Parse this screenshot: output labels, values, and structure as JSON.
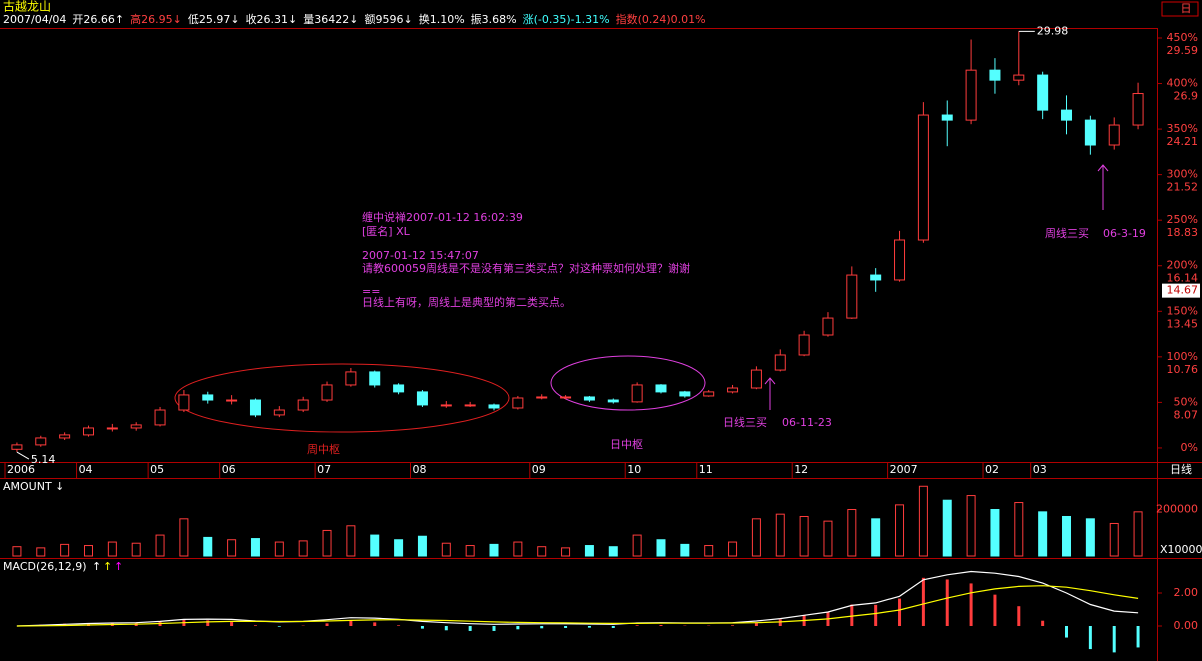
{
  "header": {
    "name": "古越龙山",
    "items": [
      "2007/04/04",
      "开26.66↑",
      "高26.95↓",
      "低25.97↓",
      "收26.31↓",
      "量36422↓",
      "额9596↓",
      "换1.10%",
      "振3.68%",
      "涨(-0.35)-1.31%",
      "指数(0.24)0.01%"
    ],
    "badge": "日"
  },
  "notes": {
    "comment": [
      "缠中说禅2007-01-12 16:02:39",
      "[匿名] XL",
      "2007-01-12 15:47:07",
      "请教600059周线是不是没有第三类买点？对这种票如何处理？谢谢",
      "==",
      "日线上有呀，周线上是典型的第二类买点。"
    ],
    "labels": [
      "周中枢",
      "日中枢",
      "日线三买",
      "06-11-23",
      "周线三买",
      "06-3-19"
    ]
  },
  "chart_data": [
    {
      "type": "candlestick",
      "categories": [
        "2006",
        null,
        null,
        "04",
        null,
        null,
        "05",
        null,
        null,
        "06",
        null,
        null,
        null,
        "07",
        null,
        null,
        null,
        "08",
        null,
        null,
        null,
        null,
        "09",
        null,
        null,
        null,
        "10",
        null,
        null,
        "11",
        null,
        null,
        null,
        "12",
        null,
        null,
        null,
        "2007",
        null,
        null,
        null,
        "02",
        null,
        "03",
        null,
        null,
        null,
        null
      ],
      "period": "日线",
      "open": [
        5.3,
        5.56,
        5.97,
        6.15,
        6.56,
        6.56,
        6.74,
        7.62,
        8.51,
        8.21,
        8.21,
        7.33,
        7.62,
        8.21,
        9.1,
        9.87,
        9.1,
        8.69,
        7.92,
        7.92,
        7.92,
        7.74,
        8.33,
        8.39,
        8.39,
        8.21,
        8.1,
        9.1,
        8.69,
        8.45,
        8.69,
        8.92,
        9.98,
        10.87,
        12.05,
        13.05,
        15.59,
        15.3,
        17.66,
        25.04,
        24.74,
        27.69,
        27.1,
        27.4,
        25.33,
        24.74,
        23.27,
        24.45
      ],
      "high": [
        5.7,
        6.1,
        6.3,
        6.7,
        6.8,
        6.9,
        7.8,
        8.8,
        8.7,
        8.5,
        8.3,
        7.85,
        8.4,
        9.3,
        10.1,
        9.95,
        9.2,
        8.8,
        8.15,
        8.1,
        8.0,
        8.45,
        8.55,
        8.5,
        8.45,
        8.3,
        9.25,
        9.15,
        8.75,
        8.8,
        9.1,
        10.2,
        11.2,
        12.3,
        13.4,
        16.1,
        16.0,
        18.2,
        25.8,
        25.9,
        29.5,
        28.4,
        29.98,
        27.6,
        26.2,
        25.0,
        24.9,
        26.95
      ],
      "low": [
        5.14,
        5.45,
        5.85,
        6.05,
        6.35,
        6.4,
        6.65,
        7.5,
        8.0,
        7.95,
        7.2,
        7.2,
        7.5,
        8.1,
        9.0,
        8.95,
        8.55,
        7.8,
        7.75,
        7.8,
        7.6,
        7.65,
        8.25,
        8.25,
        8.1,
        8.0,
        8.05,
        8.6,
        8.35,
        8.4,
        8.6,
        8.85,
        9.9,
        10.8,
        11.95,
        13.0,
        14.6,
        15.2,
        17.5,
        23.2,
        24.5,
        26.3,
        26.8,
        24.8,
        23.9,
        22.7,
        23.0,
        24.2
      ],
      "close": [
        5.56,
        5.97,
        6.15,
        6.56,
        6.56,
        6.74,
        7.62,
        8.51,
        8.21,
        8.21,
        7.33,
        7.62,
        8.21,
        9.1,
        9.87,
        9.1,
        8.69,
        7.92,
        7.92,
        7.92,
        7.74,
        8.33,
        8.39,
        8.39,
        8.21,
        8.1,
        9.1,
        8.69,
        8.45,
        8.69,
        8.92,
        9.98,
        10.87,
        12.05,
        13.05,
        15.59,
        15.3,
        17.66,
        25.04,
        24.74,
        27.69,
        27.1,
        27.4,
        25.33,
        24.74,
        23.27,
        24.45,
        26.31
      ],
      "up_color": "#ff3c3c",
      "down_color": "#54ffff",
      "ylim": [
        4.55,
        30.18
      ],
      "yticks": [
        {
          "value": 5.38,
          "label": "0%"
        },
        {
          "value": 8.07,
          "label": "50%"
        },
        {
          "value": 10.76,
          "label": "100%"
        },
        {
          "value": 13.45,
          "label": "150%"
        },
        {
          "value": 16.14,
          "label": "200%"
        },
        {
          "value": 18.83,
          "label": "250%"
        },
        {
          "value": 21.52,
          "label": "300%"
        },
        {
          "value": 24.21,
          "label": "350%"
        },
        {
          "value": 26.9,
          "label": "400%"
        },
        {
          "value": 29.59,
          "label": "450%"
        }
      ],
      "cursor_price": 14.67
    },
    {
      "type": "bar",
      "title": "AMOUNT ↓",
      "unit": "X10000",
      "values": [
        40000,
        35000,
        50000,
        45000,
        60000,
        55000,
        90000,
        160000,
        80000,
        70000,
        75000,
        60000,
        65000,
        110000,
        130000,
        90000,
        70000,
        85000,
        55000,
        45000,
        50000,
        60000,
        40000,
        35000,
        45000,
        40000,
        90000,
        70000,
        50000,
        45000,
        60000,
        160000,
        180000,
        170000,
        150000,
        200000,
        160000,
        220000,
        300000,
        240000,
        260000,
        200000,
        230000,
        190000,
        170000,
        160000,
        140000,
        190000
      ],
      "ylim": [
        0,
        327000
      ],
      "yticks": [
        200000
      ]
    },
    {
      "type": "macd",
      "title": "MACD(26,12,9)",
      "series": [
        {
          "name": "↑",
          "color": "#ffffff",
          "values": [
            0,
            0.05,
            0.1,
            0.15,
            0.18,
            0.2,
            0.28,
            0.4,
            0.42,
            0.4,
            0.3,
            0.25,
            0.28,
            0.38,
            0.5,
            0.48,
            0.4,
            0.28,
            0.2,
            0.14,
            0.1,
            0.12,
            0.13,
            0.13,
            0.12,
            0.1,
            0.18,
            0.2,
            0.18,
            0.18,
            0.2,
            0.3,
            0.45,
            0.65,
            0.85,
            1.25,
            1.4,
            1.8,
            2.8,
            3.1,
            3.3,
            3.2,
            3.0,
            2.6,
            2.0,
            1.3,
            0.9,
            0.8
          ]
        },
        {
          "name": "↑",
          "color": "#ffff00",
          "values": [
            0,
            0.01,
            0.03,
            0.06,
            0.09,
            0.11,
            0.15,
            0.2,
            0.25,
            0.28,
            0.28,
            0.27,
            0.27,
            0.3,
            0.34,
            0.37,
            0.38,
            0.36,
            0.33,
            0.29,
            0.25,
            0.22,
            0.2,
            0.19,
            0.17,
            0.16,
            0.16,
            0.17,
            0.17,
            0.17,
            0.18,
            0.2,
            0.25,
            0.33,
            0.43,
            0.6,
            0.76,
            0.97,
            1.34,
            1.69,
            2.01,
            2.25,
            2.4,
            2.44,
            2.35,
            2.14,
            1.89,
            1.67
          ]
        },
        {
          "name": "↑",
          "color": "#ff00ff",
          "values": [
            0,
            0.08,
            0.14,
            0.18,
            0.18,
            0.18,
            0.26,
            0.4,
            0.34,
            0.24,
            0.04,
            -0.04,
            0.02,
            0.16,
            0.32,
            0.22,
            0.04,
            -0.16,
            -0.26,
            -0.3,
            -0.3,
            -0.2,
            -0.14,
            -0.12,
            -0.1,
            -0.12,
            0.04,
            0.06,
            0.02,
            0.02,
            0.04,
            0.2,
            0.4,
            0.64,
            0.84,
            1.3,
            1.28,
            1.66,
            2.92,
            2.82,
            2.58,
            1.9,
            1.2,
            0.32,
            -0.7,
            -1.4,
            -1.6,
            -1.3
          ]
        }
      ],
      "up_color": "#ff3c3c",
      "down_color": "#54ffff",
      "ylim": [
        -1.94,
        4.0
      ],
      "yticks": [
        {
          "value": 2,
          "label": "2.00"
        },
        {
          "value": 0,
          "label": "0.00"
        }
      ]
    }
  ]
}
